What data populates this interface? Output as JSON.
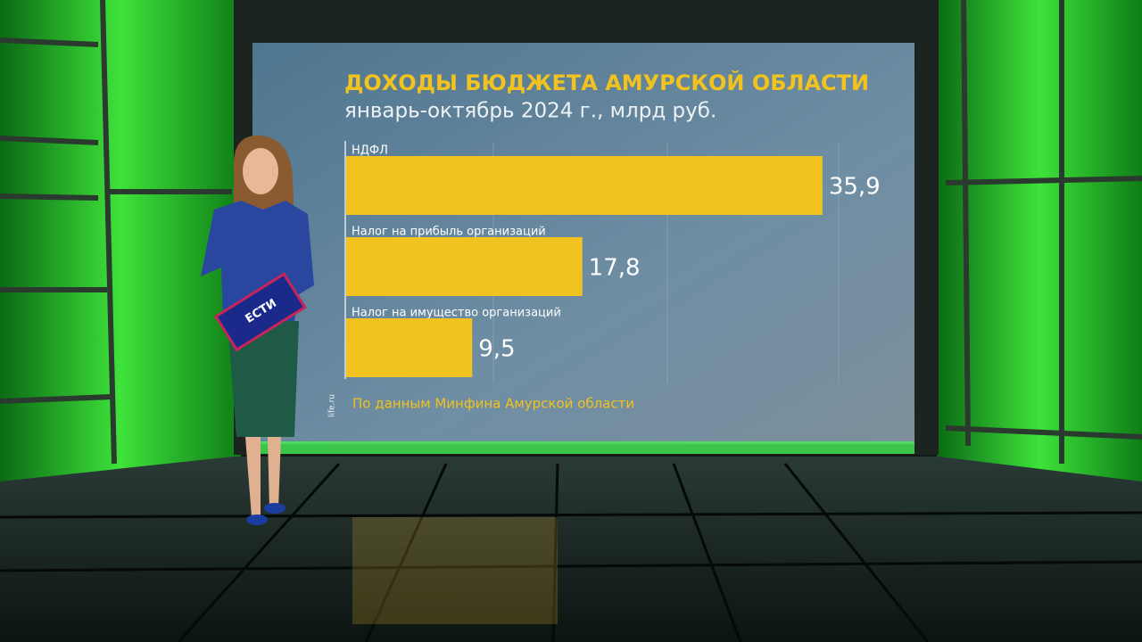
{
  "chart_data": {
    "type": "bar",
    "orientation": "horizontal",
    "title": "ДОХОДЫ БЮДЖЕТА АМУРСКОЙ ОБЛАСТИ",
    "subtitle": "январь-октябрь 2024 г., млрд руб.",
    "categories": [
      "НДФЛ",
      "Налог на прибыль организаций",
      "Налог на имущество организаций"
    ],
    "values": [
      35.9,
      17.8,
      9.5
    ],
    "value_labels": [
      "35,9",
      "17,8",
      "9,5"
    ],
    "color": "#f2c21e",
    "source": "По данным Минфина Амурской области",
    "watermark": "life.ru"
  },
  "tablet_logo": "ЕСТИ"
}
